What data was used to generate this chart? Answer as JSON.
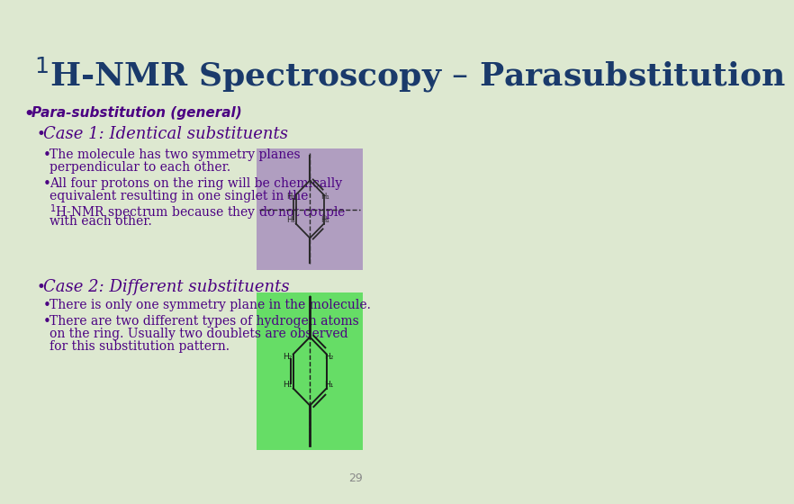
{
  "bg_color": "#dde8d0",
  "title": "$^{1}$H-NMR Spectroscopy – Parasubstitution",
  "title_color": "#1a3a6b",
  "title_fontsize": 26,
  "bullet1_text": "Para-substitution (general)",
  "bullet1_color": "#4b0082",
  "case1_text": "Case 1: Identical substituents",
  "case1_color": "#4b0082",
  "case2_text": "Case 2: Different substituents",
  "case2_color": "#4b0082",
  "body_color": "#4b0082",
  "box1_color": "#b09ec0",
  "box2_color": "#66dd66",
  "slide_number": "29",
  "body1_lines": [
    "The molecule has two symmetry planes",
    "perpendicular to each other.",
    "All four protons on the ring will be chemically",
    "equivalent resulting in one singlet in the",
    "$^{1}$H-NMR spectrum because they do not couple",
    "with each other."
  ],
  "body2_lines": [
    "There is only one symmetry plane in the molecule.",
    "There are two different types of hydrogen atoms",
    "on the ring. Usually two doublets are observed",
    "for this substitution pattern."
  ]
}
